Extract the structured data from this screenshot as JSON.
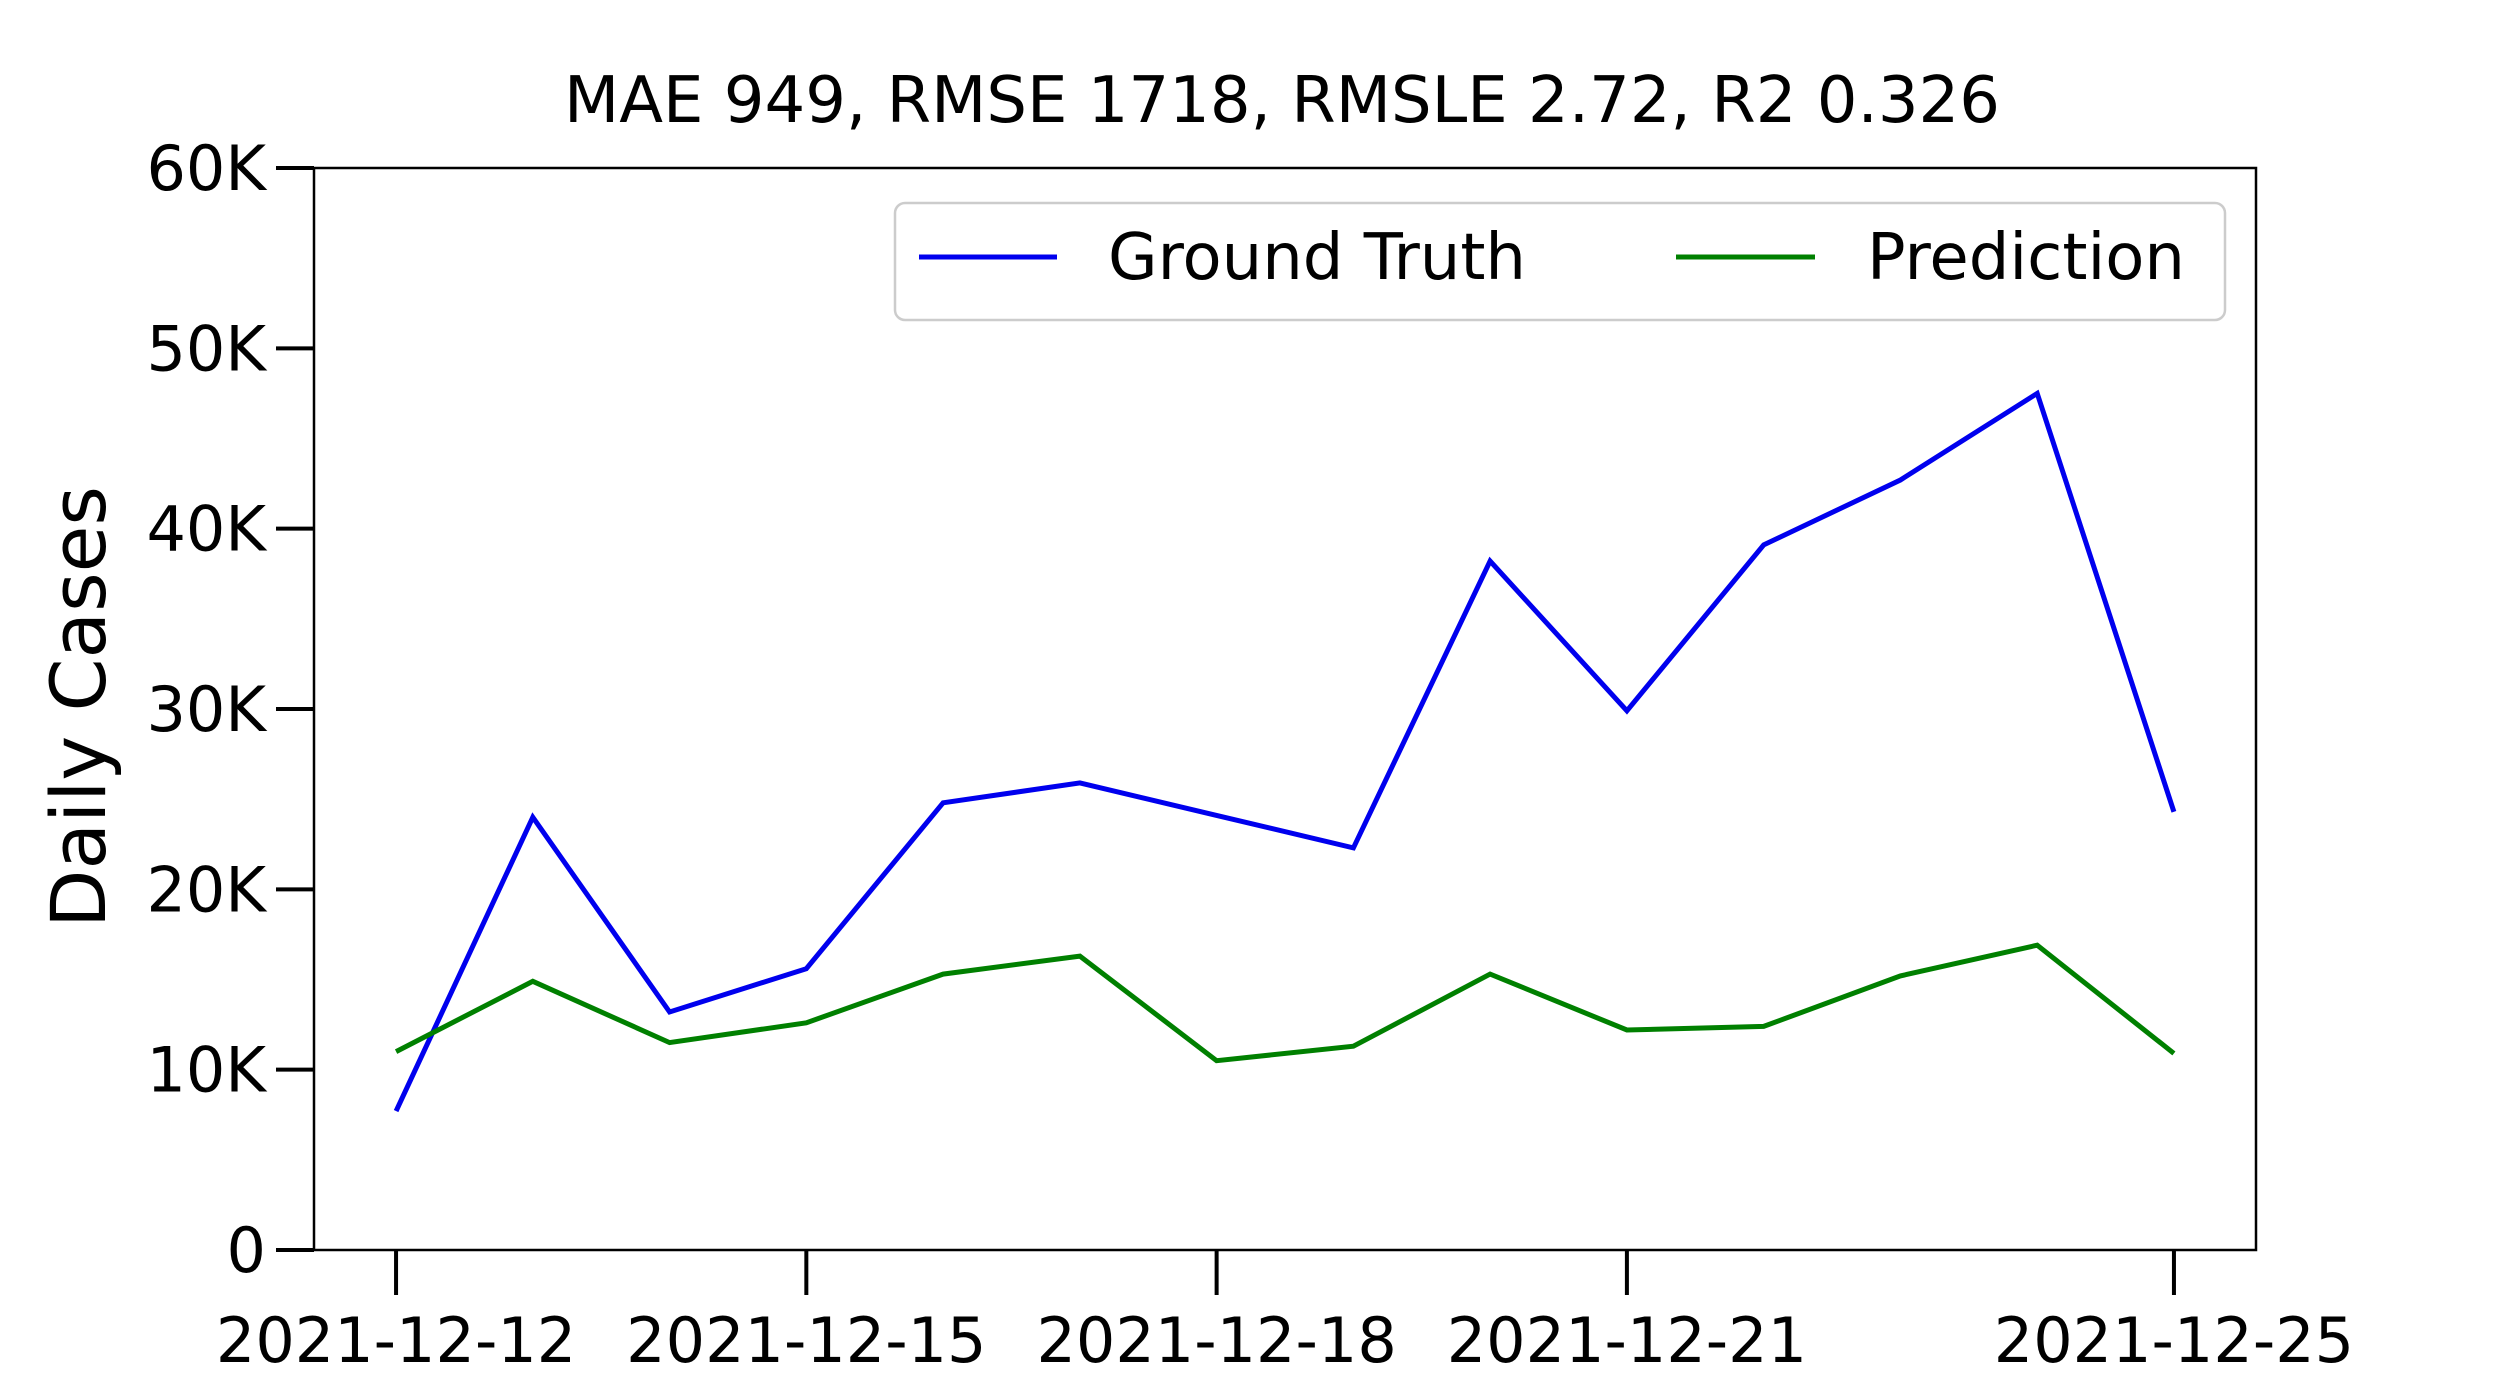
{
  "chart_data": {
    "type": "line",
    "title": "MAE 949, RMSE 1718, RMSLE 2.72, R2 0.326",
    "ylabel": "Daily Cases",
    "xlabel": "",
    "x": [
      "2021-12-12",
      "2021-12-13",
      "2021-12-14",
      "2021-12-15",
      "2021-12-16",
      "2021-12-17",
      "2021-12-18",
      "2021-12-19",
      "2021-12-20",
      "2021-12-21",
      "2021-12-22",
      "2021-12-23",
      "2021-12-24",
      "2021-12-25"
    ],
    "xlim": [
      "2021-12-11.4",
      "2021-12-25.6"
    ],
    "ylim": [
      0,
      60000
    ],
    "xticks": [
      "2021-12-12",
      "2021-12-15",
      "2021-12-18",
      "2021-12-21",
      "2021-12-25"
    ],
    "yticks": [
      0,
      10000,
      20000,
      30000,
      40000,
      50000,
      60000
    ],
    "ytick_labels": [
      "0",
      "10K",
      "20K",
      "30K",
      "40K",
      "50K",
      "60K"
    ],
    "grid": false,
    "legend_position": "top-right",
    "series": [
      {
        "name": "Ground Truth",
        "color": "#0000ee",
        "values": [
          7700,
          24000,
          13200,
          15600,
          24800,
          25900,
          24100,
          22300,
          38200,
          29900,
          39100,
          42700,
          47500,
          24300
        ]
      },
      {
        "name": "Prediction",
        "color": "#008000",
        "values": [
          11000,
          14900,
          11500,
          12600,
          15300,
          16300,
          10500,
          11300,
          15300,
          12200,
          12400,
          15200,
          16900,
          10900
        ]
      }
    ]
  }
}
